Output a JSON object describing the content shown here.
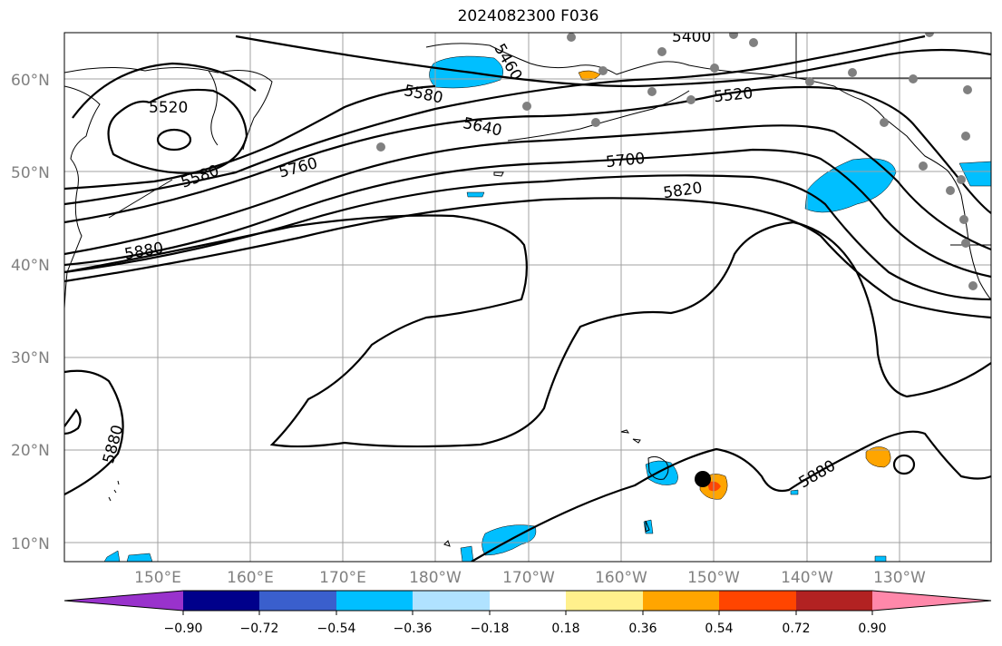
{
  "title": "2024082300 F036",
  "map": {
    "lat_ticks": [
      "60°N",
      "50°N",
      "40°N",
      "30°N",
      "20°N",
      "10°N"
    ],
    "lon_ticks": [
      "150°E",
      "160°E",
      "170°E",
      "180°W",
      "170°W",
      "160°W",
      "150°W",
      "140°W",
      "130°W"
    ],
    "contour_labels": [
      "5520",
      "5580",
      "5460",
      "5400",
      "5580",
      "5520",
      "5640",
      "5700",
      "5760",
      "5820",
      "5880",
      "5880",
      "5880"
    ],
    "grid": true,
    "marker": "black-dot"
  },
  "colorbar": {
    "ticks": [
      "−0.90",
      "−0.72",
      "−0.54",
      "−0.36",
      "−0.18",
      "0.18",
      "0.36",
      "0.54",
      "0.72",
      "0.90"
    ],
    "colors": [
      "#9932cc",
      "#00008b",
      "#3a5fcd",
      "#00bfff",
      "#b0e2ff",
      "#ffffff",
      "#fff08c",
      "#ffa500",
      "#ff4500",
      "#b22222",
      "#ff88aa"
    ]
  }
}
